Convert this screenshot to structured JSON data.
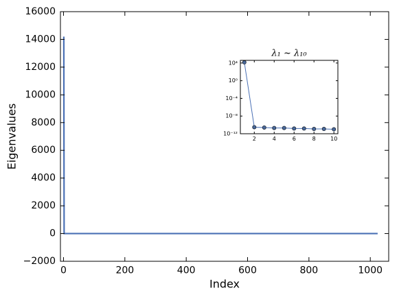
{
  "chart_data": [
    {
      "type": "line",
      "xlabel": "Index",
      "ylabel": "Eigenvalues",
      "x": [
        1,
        2,
        3,
        4,
        5,
        6,
        7,
        8,
        9,
        10,
        1024
      ],
      "series": [
        {
          "color": "#4a70b5",
          "values": [
            14200,
            3e-11,
            2.5e-11,
            2e-11,
            2e-11,
            1.5e-11,
            1.5e-11,
            1.2e-11,
            1.2e-11,
            1e-11,
            1e-12
          ]
        }
      ],
      "xlim": [
        -10,
        1060
      ],
      "ylim": [
        -2000,
        16000
      ],
      "xticks": [
        0,
        200,
        400,
        600,
        800,
        1000
      ],
      "yticks": [
        {
          "value": -2000,
          "label": "−2000"
        },
        0,
        2000,
        4000,
        6000,
        8000,
        10000,
        12000,
        14000,
        16000
      ]
    },
    {
      "type": "line",
      "title": "λ₁ ~ λ₁₀",
      "yscale": "log",
      "marker": "circle",
      "x": [
        1,
        2,
        3,
        4,
        5,
        6,
        7,
        8,
        9,
        10
      ],
      "series": [
        {
          "color": "#4a70b5",
          "marker_color": "#4a6a9c",
          "values": [
            14200,
            3e-11,
            2.5e-11,
            2e-11,
            2e-11,
            1.5e-11,
            1.5e-11,
            1.2e-11,
            1.2e-11,
            1e-11
          ]
        }
      ],
      "xlim": [
        0.6,
        10.4
      ],
      "ylim": [
        1e-12,
        40000
      ],
      "xticks": [
        2,
        4,
        6,
        8,
        10
      ],
      "yticks": [
        {
          "value": 10000,
          "label": "10⁴"
        },
        {
          "value": 1,
          "label": "10⁰"
        },
        {
          "value": 0.0001,
          "label": "10⁻⁴"
        },
        {
          "value": 1e-08,
          "label": "10⁻⁸"
        },
        {
          "value": 1e-12,
          "label": "10⁻¹²"
        }
      ]
    }
  ]
}
